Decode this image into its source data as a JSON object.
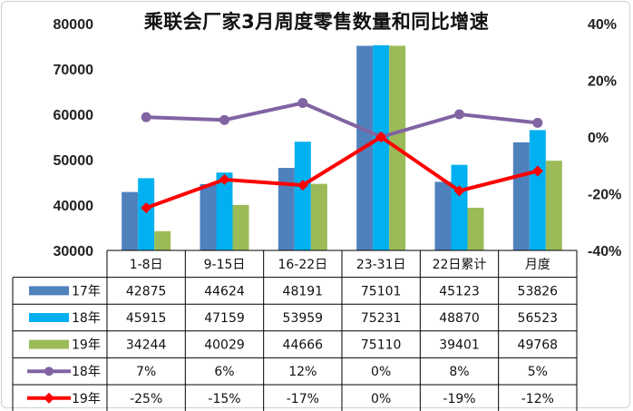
{
  "chart_data": {
    "title": "乘联会厂家3月周度零售数量和同比增速",
    "type": "bar+line",
    "categories": [
      "1-8日",
      "9-15日",
      "16-22日",
      "23-31日",
      "22日累计",
      "月度"
    ],
    "bar_series": [
      {
        "name": "17年",
        "color": "#4f81bd",
        "values": [
          42875,
          44624,
          48191,
          75101,
          45123,
          53826
        ],
        "labels": [
          "42875",
          "44624",
          "48191",
          "75101",
          "45123",
          "53826"
        ]
      },
      {
        "name": "18年",
        "color": "#00b0f0",
        "values": [
          45915,
          47159,
          53959,
          75231,
          48870,
          56523
        ],
        "labels": [
          "45915",
          "47159",
          "53959",
          "75231",
          "48870",
          "56523"
        ]
      },
      {
        "name": "19年",
        "color": "#9bbb59",
        "values": [
          34244,
          40029,
          44666,
          75110,
          39401,
          49768
        ],
        "labels": [
          "34244",
          "40029",
          "44666",
          "75110",
          "39401",
          "49768"
        ]
      }
    ],
    "line_series": [
      {
        "name": "18年",
        "color": "#8064a2",
        "marker": "circle",
        "values": [
          7,
          6,
          12,
          0,
          8,
          5
        ],
        "labels": [
          "7%",
          "6%",
          "12%",
          "0%",
          "8%",
          "5%"
        ]
      },
      {
        "name": "19年",
        "color": "#ff0000",
        "marker": "diamond",
        "values": [
          -25,
          -15,
          -17,
          0,
          -19,
          -12
        ],
        "labels": [
          "-25%",
          "-15%",
          "-17%",
          "0%",
          "-19%",
          "-12%"
        ]
      }
    ],
    "y_left": {
      "min": 30000,
      "max": 80000,
      "ticks": [
        "30000",
        "40000",
        "50000",
        "60000",
        "70000",
        "80000"
      ]
    },
    "y_right": {
      "min": -40,
      "max": 40,
      "ticks": [
        "-40%",
        "-20%",
        "0%",
        "20%",
        "40%"
      ]
    },
    "grid": false,
    "legend": "data table below chart"
  }
}
